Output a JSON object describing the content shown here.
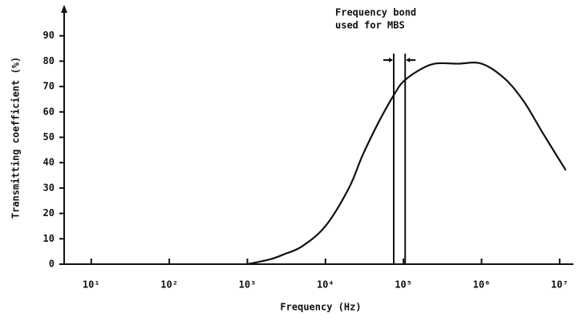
{
  "chart_data": {
    "type": "line",
    "xlabel": "Frequency (Hz)",
    "ylabel": "Transmitting coefficient (%)",
    "x": [
      1000,
      2000,
      3000,
      5000,
      10000,
      20000,
      30000,
      50000,
      80000,
      100000,
      150000,
      250000,
      500000,
      1000000,
      2000000,
      3500000,
      6000000,
      12000000
    ],
    "values": [
      0,
      2,
      4,
      7,
      15,
      30,
      43,
      57,
      68,
      72,
      76,
      79,
      79,
      79,
      73,
      64,
      52,
      37
    ],
    "color": "#111111",
    "xscale": "log",
    "xlim": [
      4.5,
      15000000
    ],
    "ylim": [
      0,
      100
    ],
    "xticks": [
      {
        "value": 10,
        "label": "10¹"
      },
      {
        "value": 100,
        "label": "10²"
      },
      {
        "value": 1000,
        "label": "10³"
      },
      {
        "value": 10000,
        "label": "10⁴"
      },
      {
        "value": 100000,
        "label": "10⁵"
      },
      {
        "value": 1000000,
        "label": "10⁶"
      },
      {
        "value": 10000000,
        "label": "10⁷"
      }
    ],
    "yticks": [
      0,
      10,
      20,
      30,
      40,
      50,
      60,
      70,
      80,
      90
    ],
    "annotation": {
      "lines": [
        "Frequency bond",
        "used for MBS"
      ],
      "band": [
        75000,
        105000
      ]
    }
  }
}
